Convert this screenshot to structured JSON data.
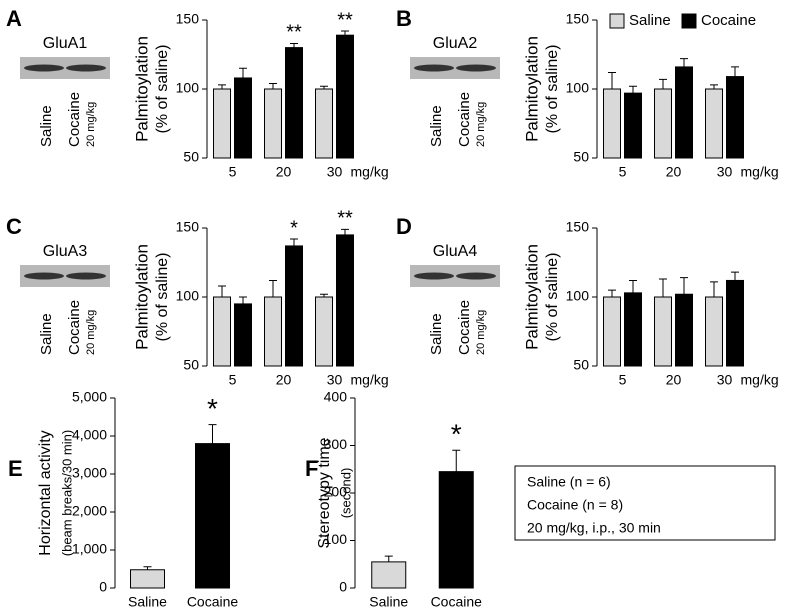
{
  "chart_data": [
    {
      "type": "bar",
      "panel": "A",
      "blot": {
        "label": "GluA1",
        "lanes": [
          "Saline",
          "Cocaine"
        ],
        "dose": "20 mg/kg"
      },
      "ylabel": "Palmitoylation",
      "ylabel_sub": "(% of saline)",
      "categories": [
        "5",
        "20",
        "30"
      ],
      "x_unit": "mg/kg",
      "ylim": [
        50,
        150
      ],
      "yticks": [
        50,
        100,
        150
      ],
      "series": [
        {
          "color": "#d9d9d9",
          "values": [
            100,
            100,
            100
          ],
          "errors": [
            3,
            4,
            2
          ]
        },
        {
          "color": "#000000",
          "values": [
            108,
            130,
            139
          ],
          "errors": [
            7,
            3,
            3
          ],
          "annotations": [
            null,
            "**",
            "**"
          ]
        }
      ]
    },
    {
      "type": "bar",
      "panel": "B",
      "blot": {
        "label": "GluA2",
        "lanes": [
          "Saline",
          "Cocaine"
        ],
        "dose": "20 mg/kg"
      },
      "ylabel": "Palmitoylation",
      "ylabel_sub": "(% of saline)",
      "categories": [
        "5",
        "20",
        "30"
      ],
      "x_unit": "mg/kg",
      "ylim": [
        50,
        150
      ],
      "yticks": [
        50,
        100,
        150
      ],
      "legend": "top-right",
      "series": [
        {
          "name": "Saline",
          "color": "#d9d9d9",
          "values": [
            100,
            100,
            100
          ],
          "errors": [
            12,
            7,
            3
          ]
        },
        {
          "name": "Cocaine",
          "color": "#000000",
          "values": [
            97,
            116,
            109
          ],
          "errors": [
            5,
            6,
            7
          ]
        }
      ]
    },
    {
      "type": "bar",
      "panel": "C",
      "blot": {
        "label": "GluA3",
        "lanes": [
          "Saline",
          "Cocaine"
        ],
        "dose": "20 mg/kg"
      },
      "ylabel": "Palmitoylation",
      "ylabel_sub": "(% of saline)",
      "categories": [
        "5",
        "20",
        "30"
      ],
      "x_unit": "mg/kg",
      "ylim": [
        50,
        150
      ],
      "yticks": [
        50,
        100,
        150
      ],
      "series": [
        {
          "color": "#d9d9d9",
          "values": [
            100,
            100,
            100
          ],
          "errors": [
            8,
            12,
            2
          ]
        },
        {
          "color": "#000000",
          "values": [
            95,
            137,
            145
          ],
          "errors": [
            5,
            5,
            4
          ],
          "annotations": [
            null,
            "*",
            "**"
          ]
        }
      ]
    },
    {
      "type": "bar",
      "panel": "D",
      "blot": {
        "label": "GluA4",
        "lanes": [
          "Saline",
          "Cocaine"
        ],
        "dose": "20 mg/kg"
      },
      "ylabel": "Palmitoylation",
      "ylabel_sub": "(% of saline)",
      "categories": [
        "5",
        "20",
        "30"
      ],
      "x_unit": "mg/kg",
      "ylim": [
        50,
        150
      ],
      "yticks": [
        50,
        100,
        150
      ],
      "series": [
        {
          "color": "#d9d9d9",
          "values": [
            100,
            100,
            100
          ],
          "errors": [
            5,
            13,
            11
          ]
        },
        {
          "color": "#000000",
          "values": [
            103,
            102,
            112
          ],
          "errors": [
            9,
            12,
            6
          ]
        }
      ]
    },
    {
      "type": "bar",
      "panel": "E",
      "ylabel": "Horizontal activity",
      "ylabel_sub": "(beam breaks/30 min)",
      "categories": [
        "Saline",
        "Cocaine"
      ],
      "ylim": [
        0,
        5000
      ],
      "yticks": [
        0,
        {
          "value": 1000,
          "label": "1,000"
        },
        {
          "value": 2000,
          "label": "2,000"
        },
        {
          "value": 3000,
          "label": "3,000"
        },
        {
          "value": 4000,
          "label": "4,000"
        },
        {
          "value": 5000,
          "label": "5,000"
        }
      ],
      "series": [
        {
          "colors": [
            "#d9d9d9",
            "#000000"
          ],
          "values": [
            480,
            3800
          ],
          "errors": [
            80,
            500
          ],
          "annotations": [
            null,
            "*"
          ]
        }
      ]
    },
    {
      "type": "bar",
      "panel": "F",
      "ylabel": "Stereotypy time",
      "ylabel_sub": "(second)",
      "categories": [
        "Saline",
        "Cocaine"
      ],
      "ylim": [
        0,
        400
      ],
      "yticks": [
        0,
        100,
        200,
        300,
        400
      ],
      "series": [
        {
          "colors": [
            "#d9d9d9",
            "#000000"
          ],
          "values": [
            55,
            245
          ],
          "errors": [
            12,
            45
          ],
          "annotations": [
            null,
            "*"
          ]
        }
      ]
    }
  ],
  "note": [
    "Saline (n = 6)",
    "Cocaine (n = 8)",
    "20 mg/kg, i.p., 30 min"
  ]
}
